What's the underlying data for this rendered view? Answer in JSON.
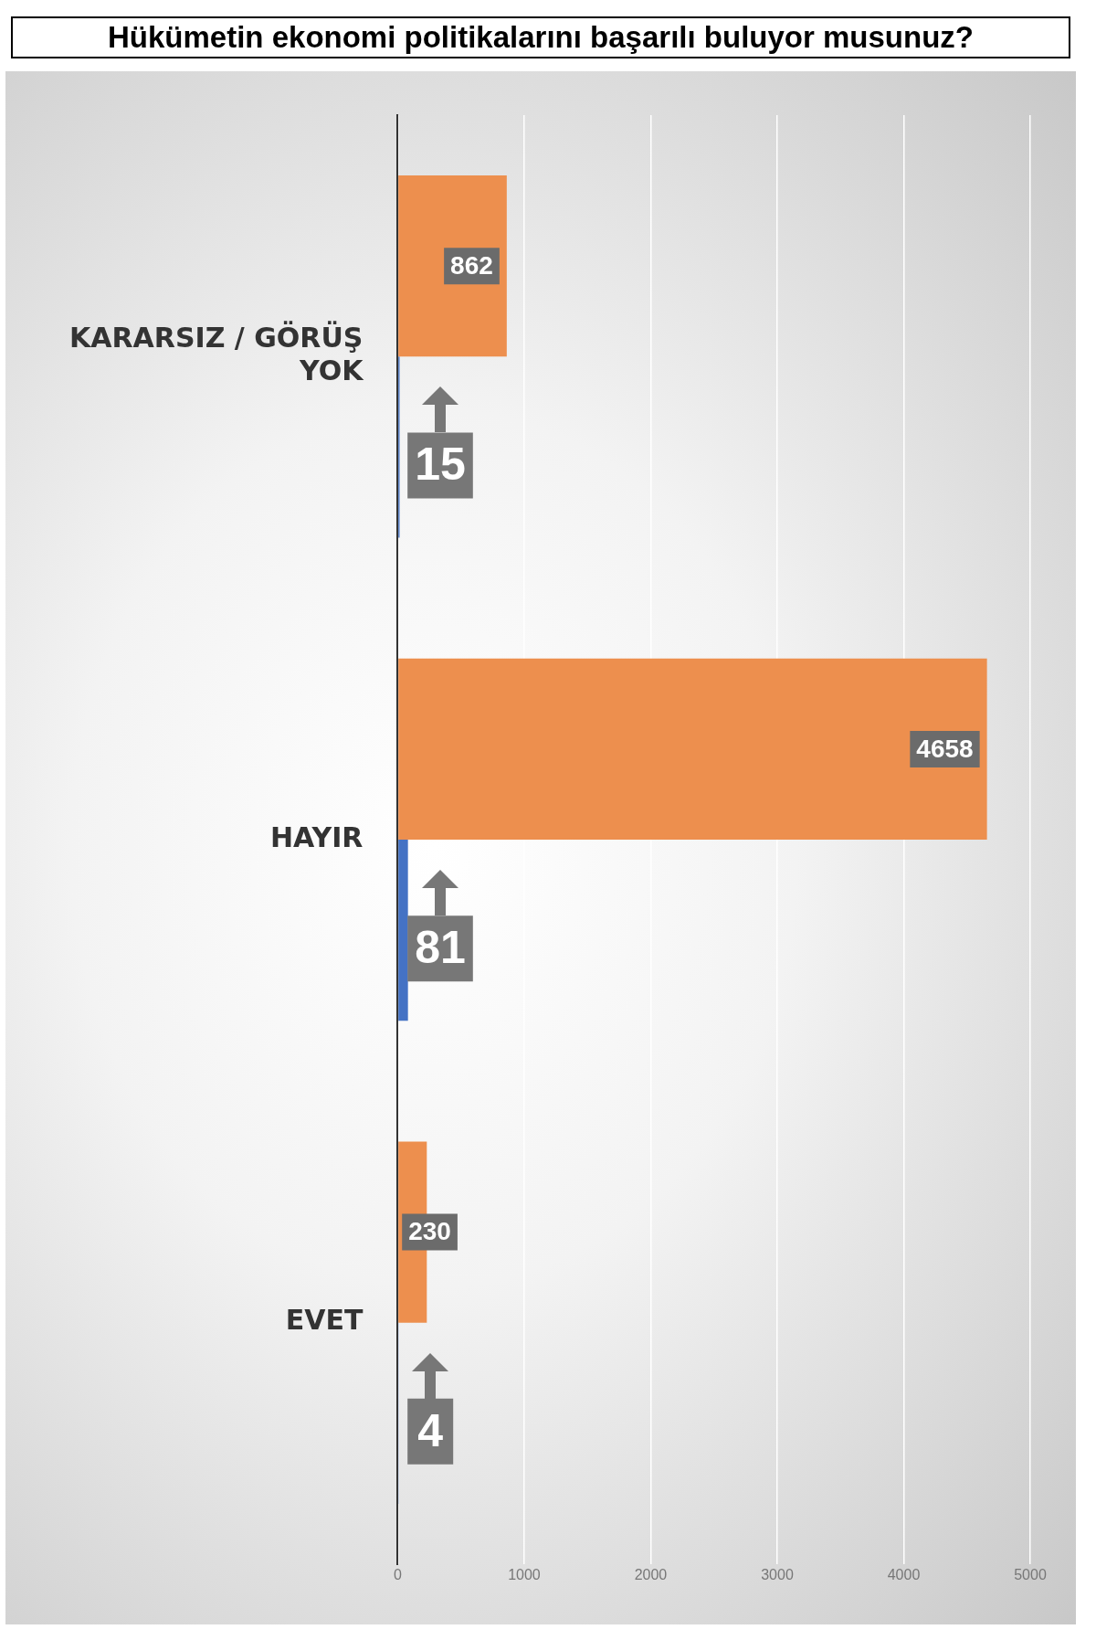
{
  "chart_data": {
    "type": "bar",
    "orientation": "horizontal",
    "title": "Hükümetin ekonomi politikalarını başarılı buluyor musunuz?",
    "categories": [
      "KARARSIZ / GÖRÜŞ YOK",
      "HAYIR",
      "EVET"
    ],
    "series": [
      {
        "color": "#ed8f4e",
        "values": [
          862,
          4658,
          230
        ]
      },
      {
        "color": "#4472c4",
        "values": [
          15,
          81,
          4
        ]
      }
    ],
    "xlim": [
      0,
      5000
    ],
    "xticks": [
      0,
      1000,
      2000,
      3000,
      4000,
      5000
    ],
    "grid": "x",
    "legend": false,
    "data_labels": true
  }
}
